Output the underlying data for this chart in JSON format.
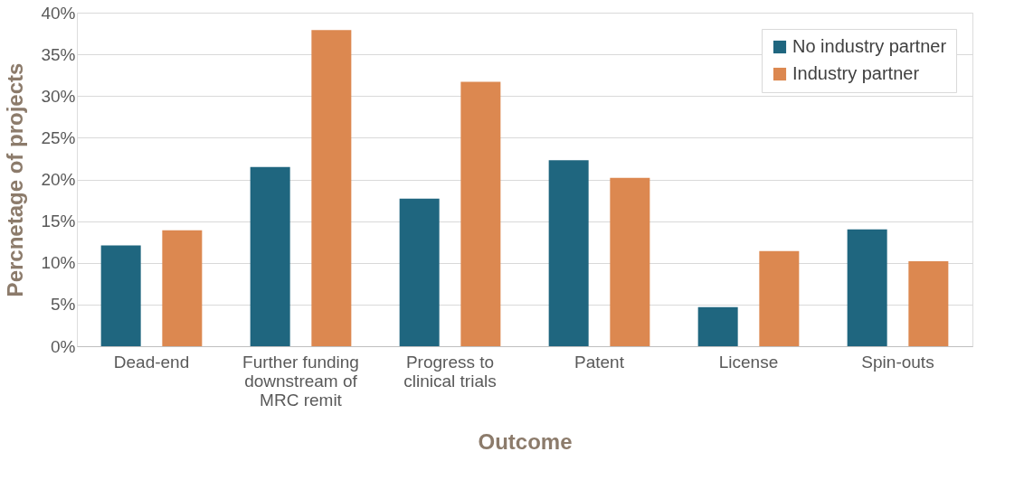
{
  "chart_data": {
    "type": "bar",
    "xlabel": "Outcome",
    "ylabel": "Percnetage of projects",
    "categories": [
      "Dead-end",
      "Further funding downstream of MRC remit",
      "Progress to clinical trials",
      "Patent",
      "License",
      "Spin-outs"
    ],
    "series": [
      {
        "name": "No industry partner",
        "color": "#1f667f",
        "values": [
          12.1,
          21.5,
          17.7,
          22.3,
          4.7,
          14.0
        ]
      },
      {
        "name": "Industry partner",
        "color": "#dc8850",
        "values": [
          13.9,
          37.9,
          31.7,
          20.2,
          11.4,
          10.2
        ]
      }
    ],
    "ylim": [
      0,
      40
    ],
    "yticks": [
      {
        "value": 0,
        "label": "0%"
      },
      {
        "value": 5,
        "label": "5%"
      },
      {
        "value": 10,
        "label": "10%"
      },
      {
        "value": 15,
        "label": "15%"
      },
      {
        "value": 20,
        "label": "20%"
      },
      {
        "value": 25,
        "label": "25%"
      },
      {
        "value": 30,
        "label": "30%"
      },
      {
        "value": 35,
        "label": "35%"
      },
      {
        "value": 40,
        "label": "40%"
      }
    ],
    "grid": "y",
    "legend": "top right"
  }
}
